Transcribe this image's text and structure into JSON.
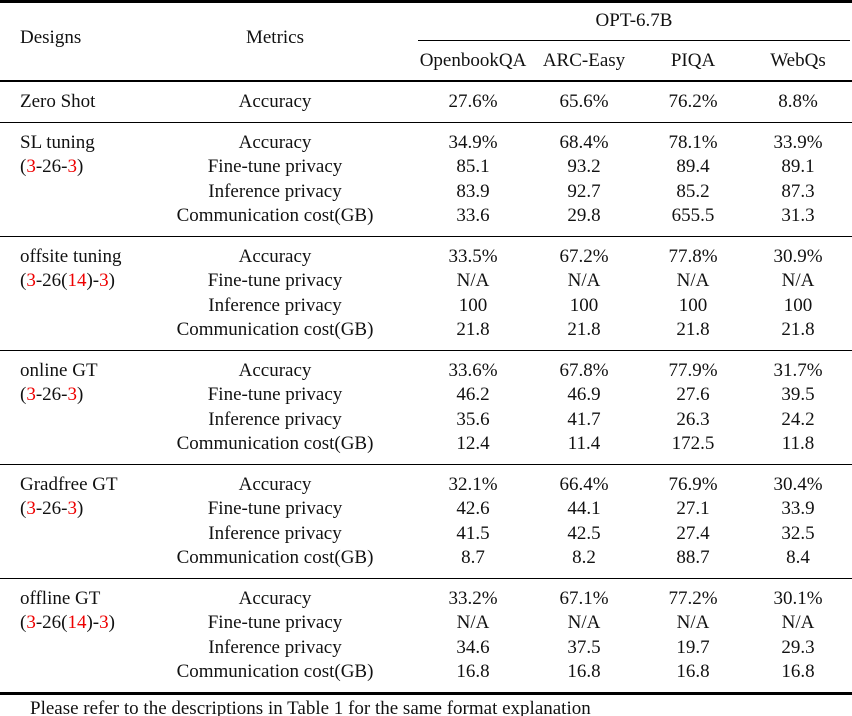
{
  "colors": {
    "red": "#ee0000",
    "text": "#111111",
    "background": "#ffffff"
  },
  "header": {
    "designs_label": "Designs",
    "metrics_label": "Metrics",
    "model_group_label": "OPT-6.7B",
    "task_columns": [
      "OpenbookQA",
      "ARC-Easy",
      "PIQA",
      "WebQs"
    ]
  },
  "sections": [
    {
      "design_lines": [
        [
          {
            "text": "Zero Shot",
            "red": false
          }
        ]
      ],
      "rows": [
        {
          "metric": "Accuracy",
          "values": [
            "27.6%",
            "65.6%",
            "76.2%",
            "8.8%"
          ]
        }
      ]
    },
    {
      "design_lines": [
        [
          {
            "text": "SL tuning",
            "red": false
          }
        ],
        [
          {
            "text": "(",
            "red": false
          },
          {
            "text": "3",
            "red": true
          },
          {
            "text": "-26-",
            "red": false
          },
          {
            "text": "3",
            "red": true
          },
          {
            "text": ")",
            "red": false
          }
        ]
      ],
      "rows": [
        {
          "metric": "Accuracy",
          "values": [
            "34.9%",
            "68.4%",
            "78.1%",
            "33.9%"
          ]
        },
        {
          "metric": "Fine-tune privacy",
          "values": [
            "85.1",
            "93.2",
            "89.4",
            "89.1"
          ]
        },
        {
          "metric": "Inference privacy",
          "values": [
            "83.9",
            "92.7",
            "85.2",
            "87.3"
          ]
        },
        {
          "metric": "Communication cost(GB)",
          "values": [
            "33.6",
            "29.8",
            "655.5",
            "31.3"
          ]
        }
      ]
    },
    {
      "design_lines": [
        [
          {
            "text": "offsite tuning",
            "red": false
          }
        ],
        [
          {
            "text": "(",
            "red": false
          },
          {
            "text": "3",
            "red": true
          },
          {
            "text": "-26(",
            "red": false
          },
          {
            "text": "14",
            "red": true
          },
          {
            "text": ")-",
            "red": false
          },
          {
            "text": "3",
            "red": true
          },
          {
            "text": ")",
            "red": false
          }
        ]
      ],
      "rows": [
        {
          "metric": "Accuracy",
          "values": [
            "33.5%",
            "67.2%",
            "77.8%",
            "30.9%"
          ]
        },
        {
          "metric": "Fine-tune privacy",
          "values": [
            "N/A",
            "N/A",
            "N/A",
            "N/A"
          ]
        },
        {
          "metric": "Inference privacy",
          "values": [
            "100",
            "100",
            "100",
            "100"
          ]
        },
        {
          "metric": "Communication cost(GB)",
          "values": [
            "21.8",
            "21.8",
            "21.8",
            "21.8"
          ]
        }
      ]
    },
    {
      "design_lines": [
        [
          {
            "text": "online GT",
            "red": false
          }
        ],
        [
          {
            "text": "(",
            "red": false
          },
          {
            "text": "3",
            "red": true
          },
          {
            "text": "-26-",
            "red": false
          },
          {
            "text": "3",
            "red": true
          },
          {
            "text": ")",
            "red": false
          }
        ]
      ],
      "rows": [
        {
          "metric": "Accuracy",
          "values": [
            "33.6%",
            "67.8%",
            "77.9%",
            "31.7%"
          ]
        },
        {
          "metric": "Fine-tune privacy",
          "values": [
            "46.2",
            "46.9",
            "27.6",
            "39.5"
          ]
        },
        {
          "metric": "Inference privacy",
          "values": [
            "35.6",
            "41.7",
            "26.3",
            "24.2"
          ]
        },
        {
          "metric": "Communication cost(GB)",
          "values": [
            "12.4",
            "11.4",
            "172.5",
            "11.8"
          ]
        }
      ]
    },
    {
      "design_lines": [
        [
          {
            "text": "Gradfree GT",
            "red": false
          }
        ],
        [
          {
            "text": "(",
            "red": false
          },
          {
            "text": "3",
            "red": true
          },
          {
            "text": "-26-",
            "red": false
          },
          {
            "text": "3",
            "red": true
          },
          {
            "text": ")",
            "red": false
          }
        ]
      ],
      "rows": [
        {
          "metric": "Accuracy",
          "values": [
            "32.1%",
            "66.4%",
            "76.9%",
            "30.4%"
          ]
        },
        {
          "metric": "Fine-tune privacy",
          "values": [
            "42.6",
            "44.1",
            "27.1",
            "33.9"
          ]
        },
        {
          "metric": "Inference privacy",
          "values": [
            "41.5",
            "42.5",
            "27.4",
            "32.5"
          ]
        },
        {
          "metric": "Communication cost(GB)",
          "values": [
            "8.7",
            "8.2",
            "88.7",
            "8.4"
          ]
        }
      ]
    },
    {
      "design_lines": [
        [
          {
            "text": "offline GT",
            "red": false
          }
        ],
        [
          {
            "text": "(",
            "red": false
          },
          {
            "text": "3",
            "red": true
          },
          {
            "text": "-26(",
            "red": false
          },
          {
            "text": "14",
            "red": true
          },
          {
            "text": ")-",
            "red": false
          },
          {
            "text": "3",
            "red": true
          },
          {
            "text": ")",
            "red": false
          }
        ]
      ],
      "rows": [
        {
          "metric": "Accuracy",
          "values": [
            "33.2%",
            "67.1%",
            "77.2%",
            "30.1%"
          ]
        },
        {
          "metric": "Fine-tune privacy",
          "values": [
            "N/A",
            "N/A",
            "N/A",
            "N/A"
          ]
        },
        {
          "metric": "Inference privacy",
          "values": [
            "34.6",
            "37.5",
            "19.7",
            "29.3"
          ]
        },
        {
          "metric": "Communication cost(GB)",
          "values": [
            "16.8",
            "16.8",
            "16.8",
            "16.8"
          ]
        }
      ]
    }
  ],
  "footnote": "Please refer to the descriptions in Table 1 for the same format explanation"
}
